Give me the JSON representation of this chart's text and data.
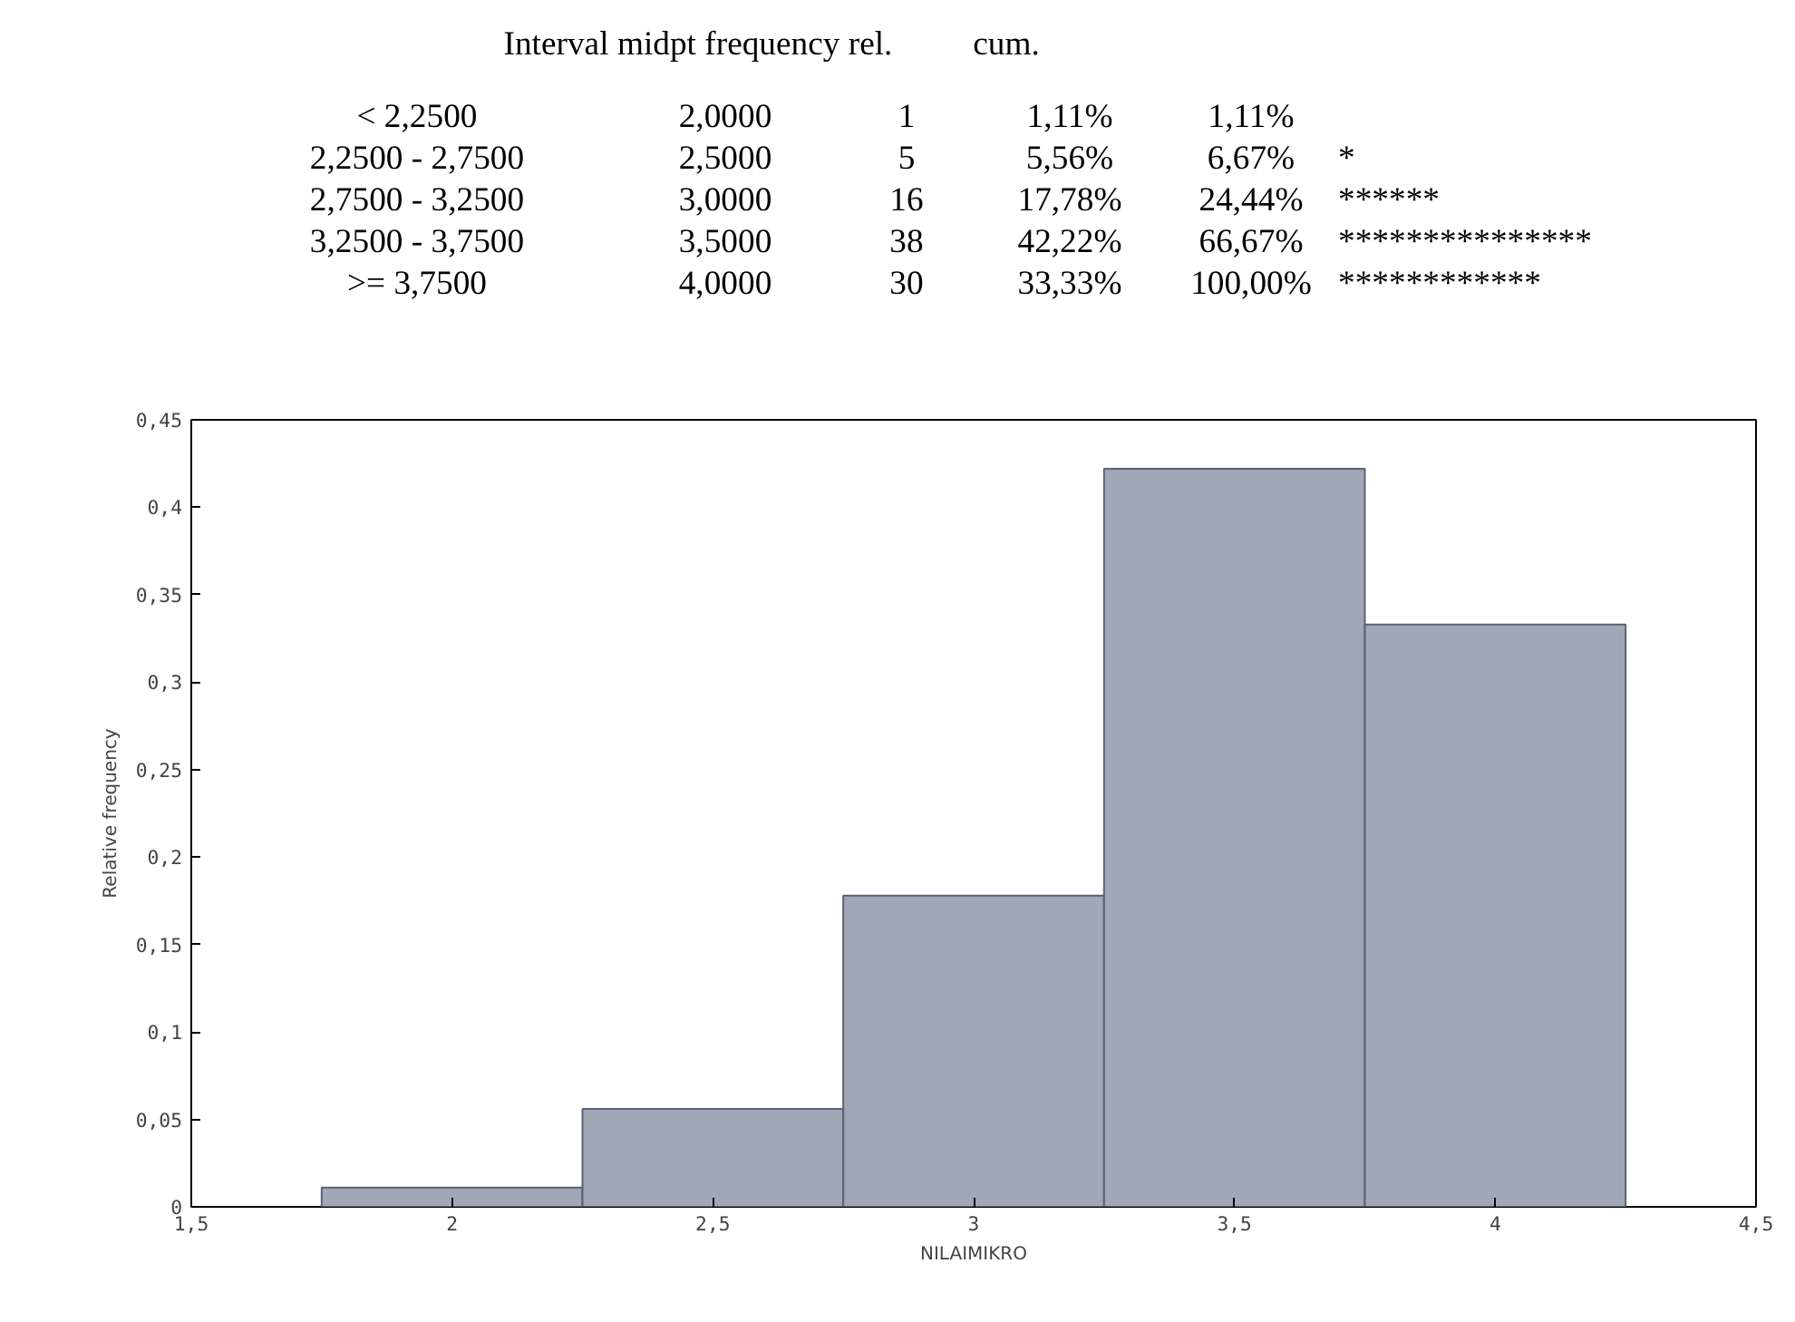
{
  "chart_data": {
    "type": "histogram",
    "bins": [
      1.75,
      2.25,
      2.75,
      3.25,
      3.75,
      4.25
    ],
    "values": [
      0.011,
      0.056,
      0.178,
      0.422,
      0.333
    ],
    "color": "#a0a7b5",
    "xlabel": "NILAIMIKRO",
    "ylabel": "Relative frequency",
    "xlim": [
      1.5,
      4.5
    ],
    "ylim": [
      0,
      0.45
    ],
    "xticks": [
      {
        "value": 1.5,
        "label": "1,5"
      },
      {
        "value": 2,
        "label": "2"
      },
      {
        "value": 2.5,
        "label": "2,5"
      },
      {
        "value": 3,
        "label": "3"
      },
      {
        "value": 3.5,
        "label": "3,5"
      },
      {
        "value": 4,
        "label": "4"
      },
      {
        "value": 4.5,
        "label": "4,5"
      }
    ],
    "yticks": [
      {
        "value": 0,
        "label": "0"
      },
      {
        "value": 0.05,
        "label": "0,05"
      },
      {
        "value": 0.1,
        "label": "0,1"
      },
      {
        "value": 0.15,
        "label": "0,15"
      },
      {
        "value": 0.2,
        "label": "0,2"
      },
      {
        "value": 0.25,
        "label": "0,25"
      },
      {
        "value": 0.3,
        "label": "0,3"
      },
      {
        "value": 0.35,
        "label": "0,35"
      },
      {
        "value": 0.4,
        "label": "0,4"
      },
      {
        "value": 0.45,
        "label": "0,45"
      }
    ],
    "grid": false,
    "annotations": [
      "Interval midpt frequency rel.    cum.",
      "< 2,2500    2,0000    1    1,11%    1,11%",
      "2,2500 - 2,7500    2,5000    5    5,56%    6,67%    *",
      "2,7500 - 3,2500    3,0000    16    17,78%    24,44%    ******",
      "3,2500 - 3,7500    3,5000    38    42,22%    66,67%    ***************",
      ">= 3,7500    4,0000    30    33,33%    100,00%    ************"
    ]
  }
}
